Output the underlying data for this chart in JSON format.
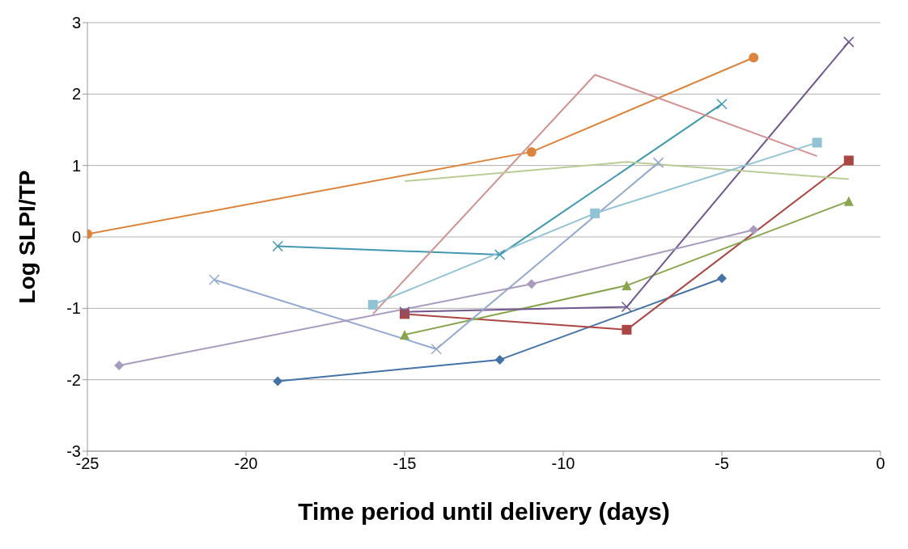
{
  "chart_data": {
    "type": "line",
    "xlabel": "Time period until delivery (days)",
    "ylabel": "Log  SLPI/TP",
    "xlim": [
      -25,
      0
    ],
    "ylim": [
      -3,
      3
    ],
    "xticks": [
      -25,
      -20,
      -15,
      -10,
      -5,
      0
    ],
    "yticks": [
      -3,
      -2,
      -1,
      0,
      1,
      2,
      3
    ],
    "grid": "y",
    "legend": false,
    "series": [
      {
        "color": "#4572a7",
        "marker": "diamond",
        "x": [
          -19,
          -12,
          -5
        ],
        "values": [
          -2.02,
          -1.72,
          -0.58
        ]
      },
      {
        "color": "#aa4643",
        "marker": "square",
        "x": [
          -15,
          -8,
          -1
        ],
        "values": [
          -1.08,
          -1.3,
          1.07
        ]
      },
      {
        "color": "#89a54e",
        "marker": "triangle",
        "x": [
          -15,
          -8,
          -1
        ],
        "values": [
          -1.37,
          -0.68,
          0.5
        ]
      },
      {
        "color": "#71588f",
        "marker": "cross",
        "x": [
          -15,
          -8,
          -1
        ],
        "values": [
          -1.05,
          -0.98,
          2.73
        ]
      },
      {
        "color": "#4198af",
        "marker": "cross",
        "x": [
          -19,
          -12,
          -5
        ],
        "values": [
          -0.13,
          -0.25,
          1.86
        ]
      },
      {
        "color": "#db843d",
        "marker": "circle",
        "x": [
          -25,
          -11,
          -4
        ],
        "values": [
          0.04,
          1.19,
          2.51
        ]
      },
      {
        "color": "#93a9cf",
        "marker": "cross",
        "x": [
          -21,
          -14,
          -7
        ],
        "values": [
          -0.6,
          -1.57,
          1.04
        ]
      },
      {
        "color": "#d19392",
        "marker": "none",
        "x": [
          -16,
          -9,
          -2
        ],
        "values": [
          -1.08,
          2.27,
          1.13
        ]
      },
      {
        "color": "#b9cd96",
        "marker": "none",
        "x": [
          -15,
          -8,
          -1
        ],
        "values": [
          0.78,
          1.05,
          0.81
        ]
      },
      {
        "color": "#92c3d4",
        "marker": "square",
        "x": [
          -16,
          -9,
          -2
        ],
        "values": [
          -0.95,
          0.33,
          1.32
        ]
      },
      {
        "color": "#a99bbd",
        "marker": "diamond",
        "x": [
          -24,
          -11,
          -4
        ],
        "values": [
          -1.8,
          -0.66,
          0.1
        ]
      }
    ]
  }
}
